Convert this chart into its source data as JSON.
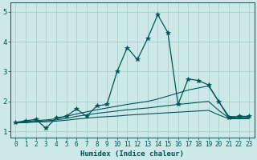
{
  "xlabel": "Humidex (Indice chaleur)",
  "xlim": [
    -0.5,
    23.5
  ],
  "ylim": [
    0.8,
    5.3
  ],
  "xticks": [
    0,
    1,
    2,
    3,
    4,
    5,
    6,
    7,
    8,
    9,
    10,
    11,
    12,
    13,
    14,
    15,
    16,
    17,
    18,
    19,
    20,
    21,
    22,
    23
  ],
  "yticks": [
    1,
    2,
    3,
    4,
    5
  ],
  "bg_color": "#cce8e8",
  "grid_color": "#aad0d0",
  "line_color": "#005555",
  "lines": [
    {
      "x": [
        0,
        1,
        2,
        3,
        4,
        5,
        6,
        7,
        8,
        9,
        10,
        11,
        12,
        13,
        14,
        15,
        16,
        17,
        18,
        19,
        20,
        21,
        22,
        23
      ],
      "y": [
        1.3,
        1.35,
        1.4,
        1.1,
        1.45,
        1.5,
        1.75,
        1.5,
        1.85,
        1.9,
        3.0,
        3.8,
        3.4,
        4.1,
        4.9,
        4.3,
        1.9,
        2.75,
        2.7,
        2.55,
        2.0,
        1.45,
        1.5,
        1.5
      ],
      "marker": "*",
      "markersize": 4,
      "lw": 0.9
    },
    {
      "x": [
        0,
        1,
        2,
        3,
        4,
        5,
        6,
        7,
        8,
        9,
        10,
        11,
        12,
        13,
        14,
        15,
        16,
        17,
        18,
        19,
        20,
        21,
        22,
        23
      ],
      "y": [
        1.28,
        1.32,
        1.36,
        1.38,
        1.42,
        1.5,
        1.58,
        1.65,
        1.72,
        1.78,
        1.84,
        1.9,
        1.95,
        2.0,
        2.08,
        2.18,
        2.28,
        2.38,
        2.45,
        2.52,
        2.0,
        1.5,
        1.48,
        1.48
      ],
      "marker": null,
      "markersize": 0,
      "lw": 0.8
    },
    {
      "x": [
        0,
        1,
        2,
        3,
        4,
        5,
        6,
        7,
        8,
        9,
        10,
        11,
        12,
        13,
        14,
        15,
        16,
        17,
        18,
        19,
        20,
        21,
        22,
        23
      ],
      "y": [
        1.28,
        1.3,
        1.33,
        1.35,
        1.38,
        1.43,
        1.5,
        1.55,
        1.6,
        1.64,
        1.68,
        1.72,
        1.75,
        1.78,
        1.82,
        1.86,
        1.9,
        1.93,
        1.97,
        2.0,
        1.7,
        1.45,
        1.44,
        1.44
      ],
      "marker": null,
      "markersize": 0,
      "lw": 0.8
    },
    {
      "x": [
        0,
        1,
        2,
        3,
        4,
        5,
        6,
        7,
        8,
        9,
        10,
        11,
        12,
        13,
        14,
        15,
        16,
        17,
        18,
        19,
        20,
        21,
        22,
        23
      ],
      "y": [
        1.28,
        1.29,
        1.31,
        1.32,
        1.34,
        1.37,
        1.41,
        1.44,
        1.47,
        1.49,
        1.51,
        1.54,
        1.56,
        1.58,
        1.6,
        1.62,
        1.64,
        1.66,
        1.68,
        1.7,
        1.55,
        1.42,
        1.42,
        1.42
      ],
      "marker": null,
      "markersize": 0,
      "lw": 0.8
    }
  ]
}
